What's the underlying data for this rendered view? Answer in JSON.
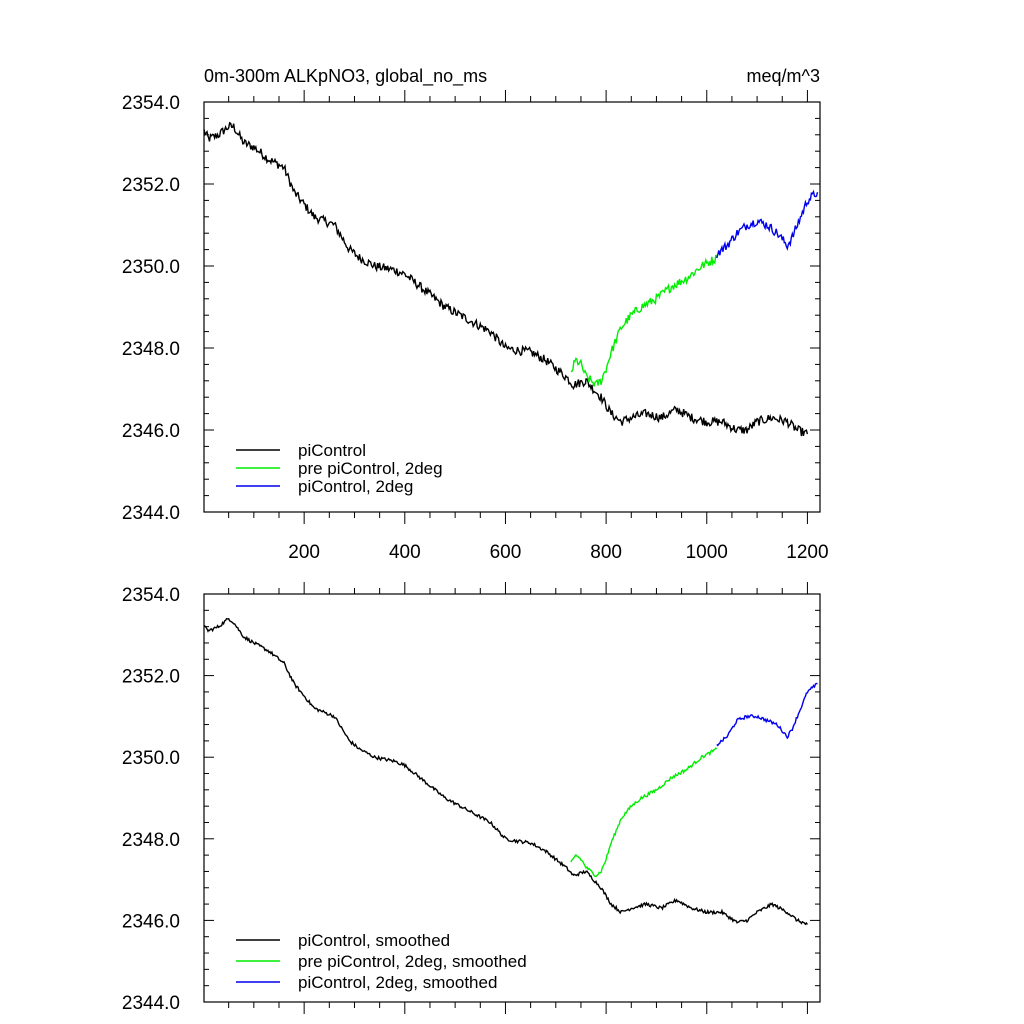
{
  "figure": {
    "title_left": "0m-300m ALKpNO3, global_no_ms",
    "title_right": "meq/m^3"
  },
  "colors": {
    "piControl": "#000000",
    "pre_piControl_2deg": "#00ee00",
    "piControl_2deg": "#0000ee"
  },
  "chart_data": [
    {
      "type": "line",
      "name": "top-panel",
      "title": "0m-300m ALKpNO3, global_no_ms",
      "units": "meq/m^3",
      "xlim": [
        1,
        1225
      ],
      "ylim": [
        2344.0,
        2354.0
      ],
      "x_ticks": [
        200,
        400,
        600,
        800,
        1000,
        1200
      ],
      "x_tick_labels": [
        "200",
        "400",
        "600",
        "800",
        "1000",
        "1200"
      ],
      "y_ticks": [
        2344.0,
        2346.0,
        2348.0,
        2350.0,
        2352.0,
        2354.0
      ],
      "y_tick_labels": [
        "2344.0",
        "2346.0",
        "2348.0",
        "2350.0",
        "2352.0",
        "2354.0"
      ],
      "legend_position": "bottom-left",
      "noise": 0.22,
      "series": [
        {
          "name": "piControl",
          "color": "#000000",
          "x": [
            1,
            10,
            30,
            50,
            60,
            80,
            100,
            130,
            160,
            180,
            200,
            220,
            260,
            290,
            310,
            340,
            380,
            400,
            420,
            450,
            480,
            510,
            540,
            570,
            600,
            620,
            650,
            680,
            700,
            720,
            735,
            760,
            790,
            810,
            830,
            850,
            880,
            910,
            940,
            970,
            1000,
            1030,
            1060,
            1080,
            1100,
            1130,
            1160,
            1180,
            1200
          ],
          "y": [
            2353.3,
            2353.1,
            2353.2,
            2353.4,
            2353.4,
            2353.0,
            2352.9,
            2352.6,
            2352.4,
            2351.8,
            2351.5,
            2351.2,
            2351.0,
            2350.4,
            2350.2,
            2350.0,
            2349.9,
            2349.8,
            2349.6,
            2349.3,
            2349.0,
            2348.8,
            2348.6,
            2348.4,
            2348.0,
            2347.95,
            2347.9,
            2347.7,
            2347.5,
            2347.3,
            2347.1,
            2347.2,
            2346.8,
            2346.4,
            2346.2,
            2346.3,
            2346.4,
            2346.3,
            2346.5,
            2346.3,
            2346.2,
            2346.2,
            2346.0,
            2346.0,
            2346.2,
            2346.3,
            2346.2,
            2346.0,
            2345.9
          ]
        },
        {
          "name": "pre piControl, 2deg",
          "color": "#00ee00",
          "x": [
            730,
            740,
            750,
            760,
            770,
            780,
            790,
            800,
            810,
            830,
            850,
            870,
            900,
            930,
            960,
            990,
            1020
          ],
          "y": [
            2347.4,
            2347.7,
            2347.6,
            2347.3,
            2347.2,
            2347.1,
            2347.2,
            2347.5,
            2347.9,
            2348.5,
            2348.8,
            2349.0,
            2349.2,
            2349.5,
            2349.7,
            2350.0,
            2350.2
          ]
        },
        {
          "name": "piControl, 2deg",
          "color": "#0000ee",
          "x": [
            1020,
            1040,
            1060,
            1080,
            1100,
            1120,
            1140,
            1160,
            1170,
            1180,
            1200,
            1220
          ],
          "y": [
            2350.3,
            2350.5,
            2350.8,
            2351.0,
            2351.1,
            2351.0,
            2350.8,
            2350.5,
            2350.7,
            2351.0,
            2351.6,
            2351.8
          ]
        }
      ],
      "legend": [
        "piControl",
        "pre piControl, 2deg",
        "piControl, 2deg"
      ]
    },
    {
      "type": "line",
      "name": "bottom-panel",
      "xlim": [
        1,
        1225
      ],
      "ylim": [
        2344.0,
        2354.0
      ],
      "y_ticks": [
        2344.0,
        2346.0,
        2348.0,
        2350.0,
        2352.0,
        2354.0
      ],
      "y_tick_labels": [
        "2344.0",
        "2346.0",
        "2348.0",
        "2350.0",
        "2352.0",
        "2354.0"
      ],
      "legend_position": "bottom-left",
      "noise": 0.08,
      "series": [
        {
          "name": "piControl, smoothed",
          "color": "#000000",
          "x": [
            1,
            10,
            30,
            50,
            60,
            80,
            100,
            130,
            160,
            180,
            200,
            220,
            260,
            290,
            310,
            340,
            380,
            400,
            420,
            450,
            480,
            510,
            540,
            570,
            600,
            620,
            650,
            680,
            700,
            720,
            735,
            760,
            790,
            810,
            830,
            850,
            880,
            910,
            940,
            970,
            1000,
            1030,
            1060,
            1080,
            1100,
            1130,
            1160,
            1180,
            1200
          ],
          "y": [
            2353.2,
            2353.1,
            2353.2,
            2353.4,
            2353.3,
            2352.95,
            2352.8,
            2352.6,
            2352.3,
            2351.8,
            2351.5,
            2351.2,
            2351.0,
            2350.4,
            2350.2,
            2350.0,
            2349.9,
            2349.8,
            2349.6,
            2349.3,
            2349.0,
            2348.8,
            2348.6,
            2348.4,
            2348.0,
            2347.95,
            2347.9,
            2347.7,
            2347.5,
            2347.3,
            2347.1,
            2347.2,
            2346.8,
            2346.4,
            2346.2,
            2346.3,
            2346.4,
            2346.3,
            2346.5,
            2346.3,
            2346.2,
            2346.2,
            2345.95,
            2346.0,
            2346.2,
            2346.4,
            2346.2,
            2346.0,
            2345.9
          ]
        },
        {
          "name": "pre piControl, 2deg, smoothed",
          "color": "#00ee00",
          "x": [
            730,
            740,
            750,
            760,
            770,
            780,
            790,
            800,
            810,
            830,
            850,
            870,
            900,
            930,
            960,
            990,
            1020
          ],
          "y": [
            2347.4,
            2347.6,
            2347.5,
            2347.3,
            2347.2,
            2347.1,
            2347.2,
            2347.5,
            2347.9,
            2348.5,
            2348.8,
            2349.0,
            2349.2,
            2349.5,
            2349.7,
            2350.0,
            2350.2
          ]
        },
        {
          "name": "piControl, 2deg, smoothed",
          "color": "#0000ee",
          "x": [
            1020,
            1040,
            1060,
            1080,
            1100,
            1120,
            1140,
            1160,
            1170,
            1180,
            1200,
            1220
          ],
          "y": [
            2350.3,
            2350.5,
            2350.9,
            2351.0,
            2351.0,
            2350.9,
            2350.8,
            2350.5,
            2350.7,
            2351.0,
            2351.6,
            2351.8
          ]
        }
      ],
      "legend": [
        "piControl, smoothed",
        "pre piControl, 2deg, smoothed",
        "piControl, 2deg, smoothed"
      ]
    }
  ]
}
